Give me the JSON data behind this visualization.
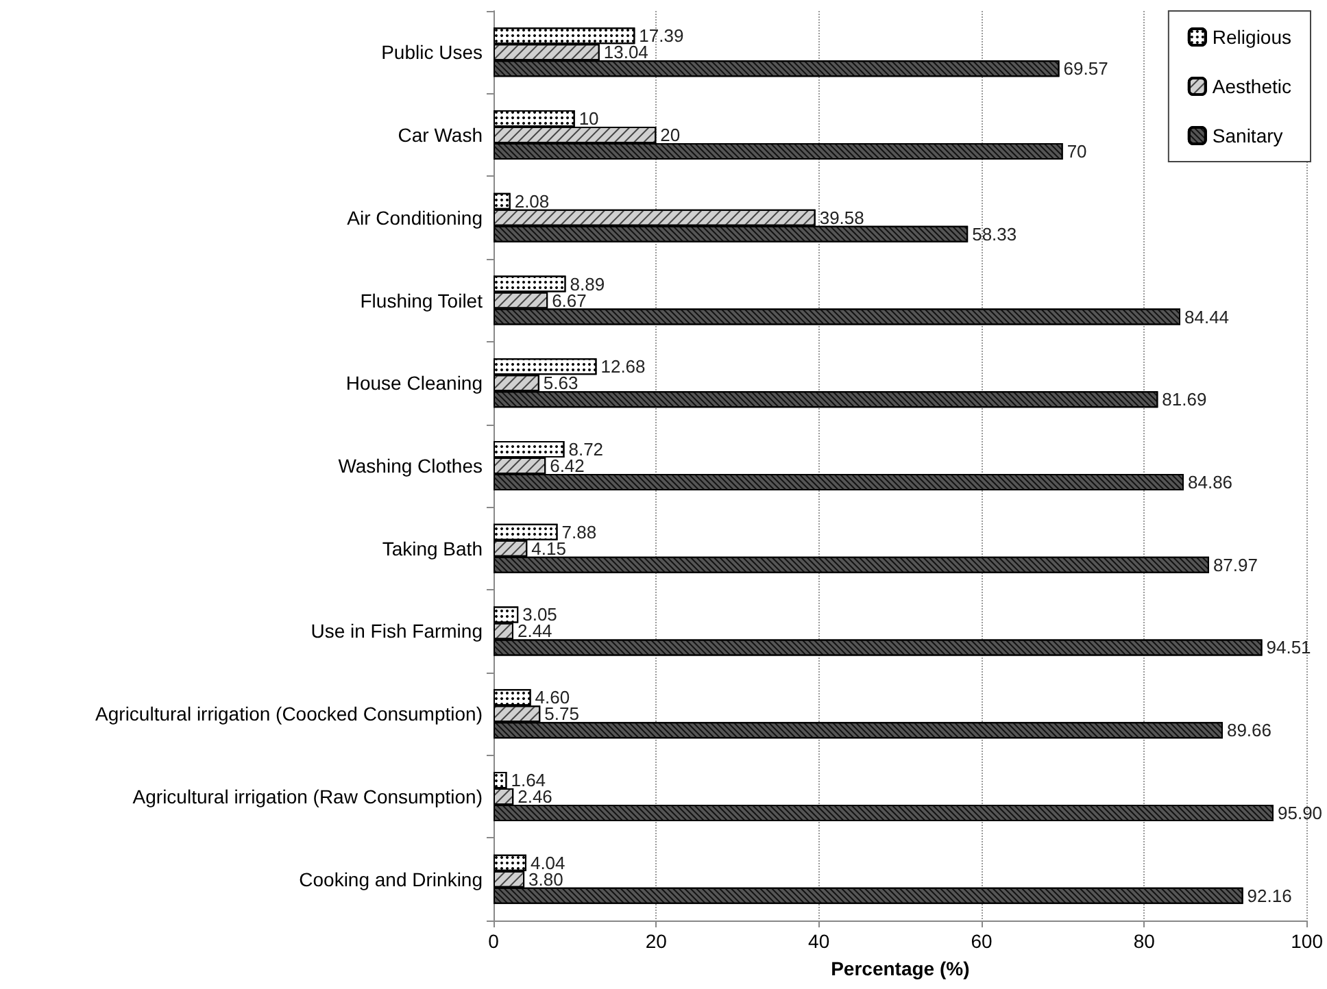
{
  "chart_data": {
    "type": "bar",
    "orientation": "horizontal",
    "xlabel": "Percentage (%)",
    "categories": [
      "Public Uses",
      "Car Wash",
      "Air Conditioning",
      "Flushing Toilet",
      "House Cleaning",
      "Washing Clothes",
      "Taking Bath",
      "Use in Fish Farming",
      "Agricultural irrigation (Coocked Consumption)",
      "Agricultural irrigation (Raw Consumption)",
      "Cooking and Drinking"
    ],
    "series": [
      {
        "name": "Religious",
        "color": "#ffffff",
        "values": [
          17.39,
          10,
          2.08,
          8.89,
          12.68,
          8.72,
          7.88,
          3.05,
          4.6,
          1.64,
          4.04
        ],
        "value_labels": [
          "17.39",
          "10",
          "2.08",
          "8.89",
          "12.68",
          "8.72",
          "7.88",
          "3.05",
          "4.60",
          "1.64",
          "4.04"
        ]
      },
      {
        "name": "Aesthetic",
        "color": "#d0d0d0",
        "values": [
          13.04,
          20,
          39.58,
          6.67,
          5.63,
          6.42,
          4.15,
          2.44,
          5.75,
          2.46,
          3.8
        ],
        "value_labels": [
          "13.04",
          "20",
          "39.58",
          "6.67",
          "5.63",
          "6.42",
          "4.15",
          "2.44",
          "5.75",
          "2.46",
          "3.80"
        ]
      },
      {
        "name": "Sanitary",
        "color": "#555555",
        "values": [
          69.57,
          70,
          58.33,
          84.44,
          81.69,
          84.86,
          87.97,
          94.51,
          89.66,
          95.9,
          92.16
        ],
        "value_labels": [
          "69.57",
          "70",
          "58.33",
          "84.44",
          "81.69",
          "84.86",
          "87.97",
          "94.51",
          "89.66",
          "95.90",
          "92.16"
        ]
      }
    ],
    "xlim": [
      0,
      100
    ],
    "xticks": [
      0,
      20,
      40,
      60,
      80,
      100
    ],
    "grid": "x",
    "legend": "top right"
  }
}
